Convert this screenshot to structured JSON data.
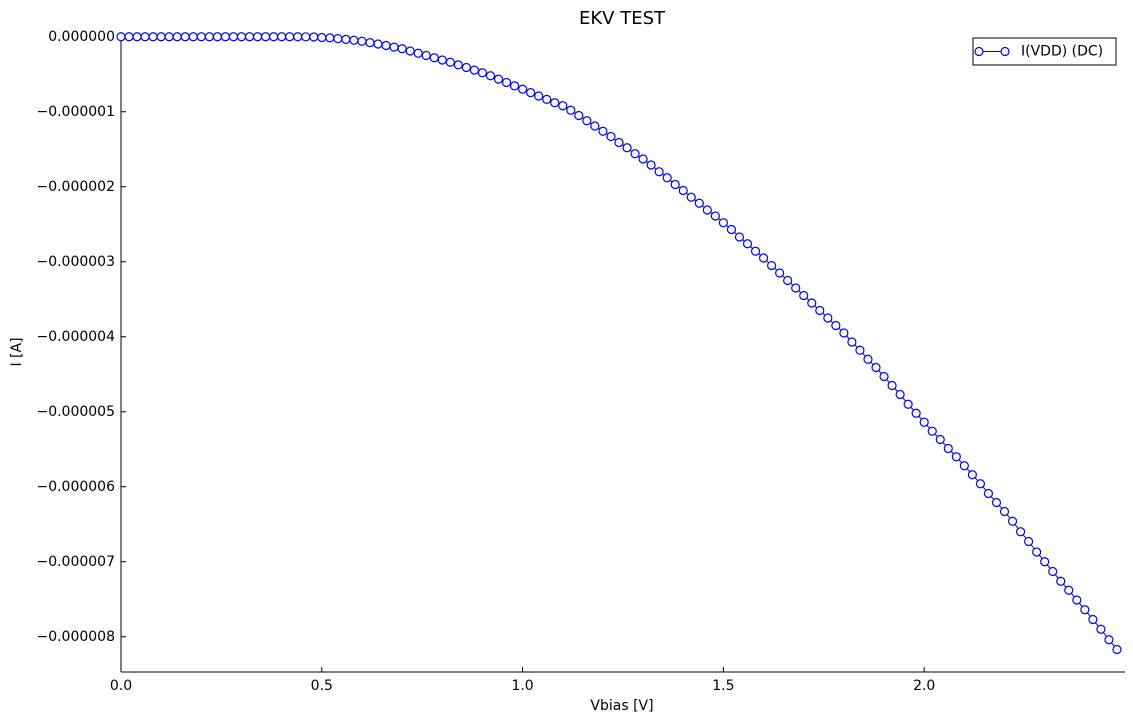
{
  "chart_data": {
    "type": "line",
    "title": "EKV TEST",
    "x_label": "Vbias [V]",
    "y_label": "I [A]",
    "x": [
      0,
      0.02,
      0.04,
      0.06,
      0.08,
      0.1,
      0.12,
      0.14,
      0.16,
      0.18,
      0.2,
      0.22,
      0.24,
      0.26,
      0.28,
      0.3,
      0.32,
      0.34,
      0.36,
      0.38,
      0.4,
      0.42,
      0.44,
      0.46,
      0.48,
      0.5,
      0.52,
      0.54,
      0.56,
      0.58,
      0.6,
      0.62,
      0.64,
      0.66,
      0.68,
      0.7,
      0.72,
      0.74,
      0.76,
      0.78,
      0.8,
      0.82,
      0.84,
      0.86,
      0.88,
      0.9,
      0.92,
      0.94,
      0.96,
      0.98,
      1.0,
      1.02,
      1.04,
      1.06,
      1.08,
      1.1,
      1.12,
      1.14,
      1.16,
      1.18,
      1.2,
      1.22,
      1.24,
      1.26,
      1.28,
      1.3,
      1.32,
      1.34,
      1.36,
      1.38,
      1.4,
      1.42,
      1.44,
      1.46,
      1.48,
      1.5,
      1.52,
      1.54,
      1.56,
      1.58,
      1.6,
      1.62,
      1.64,
      1.66,
      1.68,
      1.7,
      1.72,
      1.74,
      1.76,
      1.78,
      1.8,
      1.82,
      1.84,
      1.86,
      1.88,
      1.9,
      1.92,
      1.94,
      1.96,
      1.98,
      2.0,
      2.02,
      2.04,
      2.06,
      2.08,
      2.1,
      2.12,
      2.14,
      2.16,
      2.18,
      2.2,
      2.22,
      2.24,
      2.26,
      2.28,
      2.3,
      2.32,
      2.34,
      2.36,
      2.38,
      2.4,
      2.42,
      2.44,
      2.46,
      2.48
    ],
    "series": [
      {
        "name": "I(VDD) (DC)",
        "color": "#0000ff",
        "marker": "circle",
        "values": [
          0,
          0,
          0,
          0,
          0,
          0,
          0,
          0,
          0,
          0,
          0,
          0,
          0,
          0,
          0,
          0,
          0,
          0,
          0,
          0,
          0,
          0,
          0,
          -1e-09,
          -3e-09,
          -1e-08,
          -1.5e-08,
          -2.5e-08,
          -3.5e-08,
          -4.7e-08,
          -6e-08,
          -7.8e-08,
          -9.7e-08,
          -1.17e-07,
          -1.38e-07,
          -1.6e-07,
          -1.9e-07,
          -2.2e-07,
          -2.5e-07,
          -2.8e-07,
          -3.1e-07,
          -3.4e-07,
          -3.75e-07,
          -4.1e-07,
          -4.45e-07,
          -4.8e-07,
          -5.2e-07,
          -5.65e-07,
          -6.1e-07,
          -6.55e-07,
          -7e-07,
          -7.45e-07,
          -7.9e-07,
          -8.35e-07,
          -8.8e-07,
          -9.2e-07,
          -9.8e-07,
          -1.05e-06,
          -1.12e-06,
          -1.19e-06,
          -1.26e-06,
          -1.33e-06,
          -1.41e-06,
          -1.48e-06,
          -1.56e-06,
          -1.63e-06,
          -1.71e-06,
          -1.8e-06,
          -1.88e-06,
          -1.97e-06,
          -2.05e-06,
          -2.14e-06,
          -2.22e-06,
          -2.31e-06,
          -2.39e-06,
          -2.48e-06,
          -2.57e-06,
          -2.67e-06,
          -2.76e-06,
          -2.86e-06,
          -2.95e-06,
          -3.05e-06,
          -3.15e-06,
          -3.25e-06,
          -3.35e-06,
          -3.45e-06,
          -3.55e-06,
          -3.65e-06,
          -3.75e-06,
          -3.85e-06,
          -3.95e-06,
          -4.07e-06,
          -4.18e-06,
          -4.3e-06,
          -4.41e-06,
          -4.53e-06,
          -4.65e-06,
          -4.77e-06,
          -4.9e-06,
          -5.02e-06,
          -5.14e-06,
          -5.26e-06,
          -5.37e-06,
          -5.49e-06,
          -5.6e-06,
          -5.72e-06,
          -5.84e-06,
          -5.96e-06,
          -6.09e-06,
          -6.21e-06,
          -6.33e-06,
          -6.46e-06,
          -6.6e-06,
          -6.73e-06,
          -6.87e-06,
          -7e-06,
          -7.13e-06,
          -7.26e-06,
          -7.38e-06,
          -7.51e-06,
          -7.64e-06,
          -7.77e-06,
          -7.9e-06,
          -8.04e-06,
          -8.17e-06
        ]
      }
    ],
    "xlim": [
      0,
      2.5
    ],
    "ylim": [
      -8.47e-06,
      5e-08
    ],
    "xticks": [
      {
        "value": 0,
        "label": "0.0"
      },
      0.5,
      {
        "value": 1,
        "label": "1.0"
      },
      1.5,
      {
        "value": 2,
        "label": "2.0"
      }
    ],
    "yticks": [
      {
        "value": 0,
        "label": "0.000000"
      },
      {
        "value": -1e-06,
        "label": "−0.000001"
      },
      {
        "value": -2e-06,
        "label": "−0.000002"
      },
      {
        "value": -3e-06,
        "label": "−0.000003"
      },
      {
        "value": -4e-06,
        "label": "−0.000004"
      },
      {
        "value": -5e-06,
        "label": "−0.000005"
      },
      {
        "value": -6e-06,
        "label": "−0.000006"
      },
      {
        "value": -7e-06,
        "label": "−0.000007"
      },
      {
        "value": -8e-06,
        "label": "−0.000008"
      }
    ],
    "grid": false,
    "legend": "upper right"
  }
}
